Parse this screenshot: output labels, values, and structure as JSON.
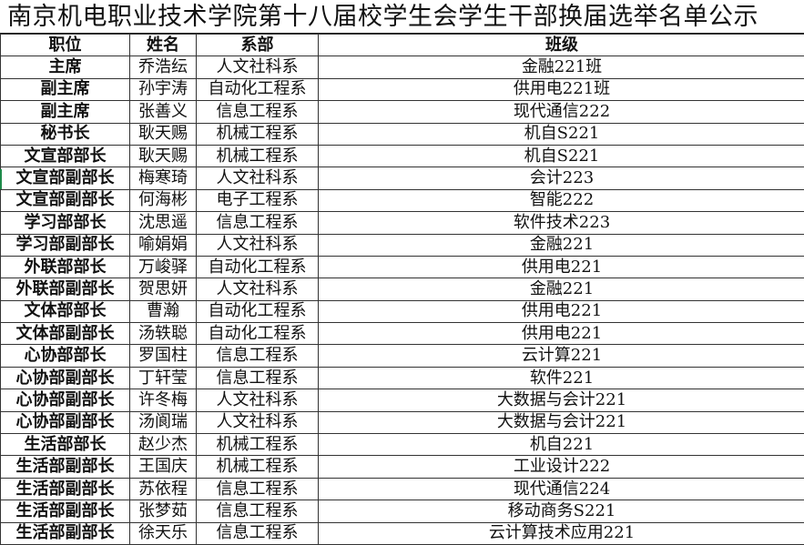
{
  "title": "南京机电职业技术学院第十八届校学生会学生干部换届选举名单公示",
  "headers": [
    "职位",
    "姓名",
    "系部",
    "班级"
  ],
  "rows": [
    [
      "主席",
      "乔浩纭",
      "人文社科系",
      "金融221班"
    ],
    [
      "副主席",
      "孙宇涛",
      "自动化工程系",
      "供用电221班"
    ],
    [
      "副主席",
      "张善义",
      "信息工程系",
      "现代通信222"
    ],
    [
      "秘书长",
      "耿天赐",
      "机械工程系",
      "机自S221"
    ],
    [
      "文宣部部长",
      "耿天赐",
      "机械工程系",
      "机自S221"
    ],
    [
      "文宣部副部长",
      "梅寒琦",
      "人文社科系",
      "会计223"
    ],
    [
      "文宣部副部长",
      "何海彬",
      "电子工程系",
      "智能222"
    ],
    [
      "学习部部长",
      "沈思遥",
      "信息工程系",
      "软件技术223"
    ],
    [
      "学习部副部长",
      "喻娟娟",
      "人文社科系",
      "金融221"
    ],
    [
      "外联部部长",
      "万峻驿",
      "自动化工程系",
      "供用电221"
    ],
    [
      "外联部副部长",
      "贺思妍",
      "人文社科系",
      "金融221"
    ],
    [
      "文体部部长",
      "曹瀚",
      "自动化工程系",
      "供用电221"
    ],
    [
      "文体部副部长",
      "汤轶聪",
      "自动化工程系",
      "供用电221"
    ],
    [
      "心协部部长",
      "罗国柱",
      "信息工程系",
      "云计算221"
    ],
    [
      "心协部副部长",
      "丁轩莹",
      "信息工程系",
      "软件221"
    ],
    [
      "心协部副部长",
      "许冬梅",
      "人文社科系",
      "大数据与会计221"
    ],
    [
      "心协部副部长",
      "汤阆瑞",
      "人文社科系",
      "大数据与会计221"
    ],
    [
      "生活部部长",
      "赵少杰",
      "机械工程系",
      "机自221"
    ],
    [
      "生活部副部长",
      "王国庆",
      "机械工程系",
      "工业设计222"
    ],
    [
      "生活部副部长",
      "苏依程",
      "信息工程系",
      "现代通信224"
    ],
    [
      "生活部副部长",
      "张梦茹",
      "信息工程系",
      "移动商务S221"
    ],
    [
      "生活部副部长",
      "徐天乐",
      "信息工程系",
      "云计算技术应用221"
    ]
  ]
}
